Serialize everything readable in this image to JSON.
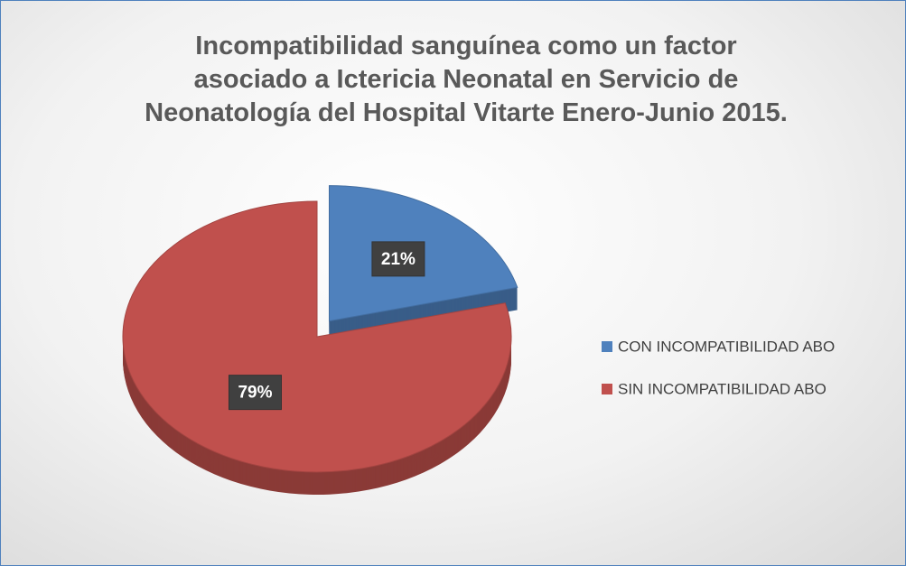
{
  "chart_data": {
    "type": "pie",
    "title": "Incompatibilidad sanguínea como un factor asociado a Ictericia Neonatal en Servicio de Neonatología del Hospital Vitarte Enero-Junio 2015.",
    "categories": [
      "CON INCOMPATIBILIDAD ABO",
      "SIN INCOMPATIBILIDAD ABO"
    ],
    "values": [
      21,
      79
    ],
    "value_labels": [
      "21%",
      "79%"
    ],
    "colors": [
      "#4f81bd",
      "#c0504d"
    ],
    "legend": "right"
  }
}
